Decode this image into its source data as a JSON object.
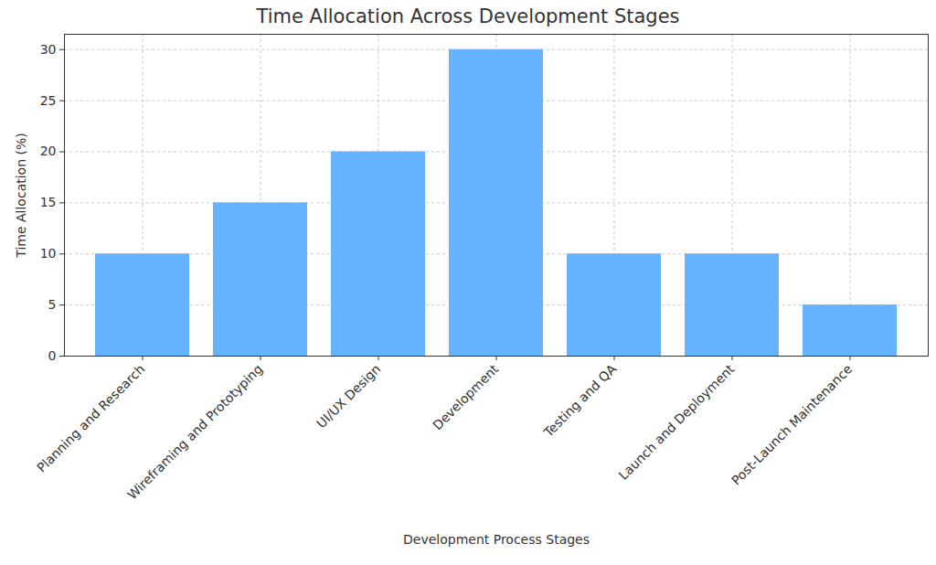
{
  "chart_data": {
    "type": "bar",
    "title": "Time Allocation Across Development Stages",
    "xlabel": "Development Process Stages",
    "ylabel": "Time Allocation (%)",
    "categories": [
      "Planning and Research",
      "Wireframing and Prototyping",
      "UI/UX Design",
      "Development",
      "Testing and QA",
      "Launch and Deployment",
      "Post-Launch Maintenance"
    ],
    "values": [
      10,
      15,
      20,
      30,
      10,
      10,
      5
    ],
    "color": "#66b3ff",
    "ylim": [
      0,
      31.5
    ],
    "yticks": [
      0,
      5,
      10,
      15,
      20,
      25,
      30
    ],
    "grid": true
  }
}
